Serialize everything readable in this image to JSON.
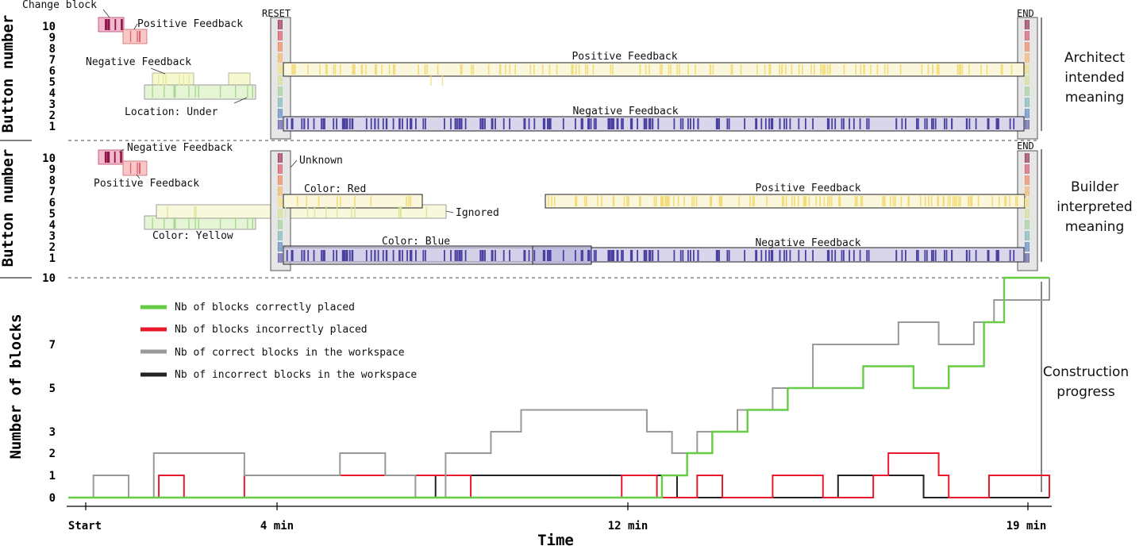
{
  "chart_data": {
    "type": "line",
    "xlabel": "Time",
    "x_ticks": [
      "Start",
      "4 min",
      "12 min",
      "19 min"
    ],
    "panels": [
      {
        "ylabel": "Button number",
        "y_ticks": [
          "10",
          "9",
          "8",
          "7",
          "6",
          "5",
          "4",
          "3",
          "2",
          "1"
        ],
        "side_label": [
          "Architect",
          "intended",
          "meaning"
        ],
        "markers": [
          "RESET",
          "END"
        ],
        "annotations": [
          "Change block",
          "Positive Feedback",
          "Negative Feedback",
          "Location: Under",
          "Positive Feedback",
          "Negative Feedback"
        ]
      },
      {
        "ylabel": "Button number",
        "y_ticks": [
          "10",
          "9",
          "8",
          "7",
          "6",
          "5",
          "4",
          "3",
          "2",
          "1"
        ],
        "side_label": [
          "Builder",
          "interpreted",
          "meaning"
        ],
        "markers": [
          "END"
        ],
        "annotations": [
          "Negative Feedback",
          "Positive Feedback",
          "Unknown",
          "Color: Red",
          "Ignored",
          "Color: Yellow",
          "Color: Blue",
          "Positive Feedback",
          "Negative Feedback"
        ]
      }
    ],
    "progress": {
      "ylabel": "Number of blocks",
      "y_ticks": [
        10,
        7,
        5,
        3,
        2,
        1,
        0
      ],
      "ylim": [
        0,
        10
      ],
      "xlim_min": [
        0,
        19.5
      ],
      "side_label": [
        "Construction",
        "progress"
      ],
      "series": [
        {
          "name": "Nb of blocks correctly placed",
          "color": "#66cc44",
          "x": [
            0,
            11.8,
            12.3,
            12.8,
            13.5,
            14.3,
            15.0,
            15.8,
            16.8,
            17.5,
            18.2,
            18.6,
            19.5
          ],
          "y": [
            0,
            1,
            2,
            3,
            4,
            5,
            5,
            6,
            5,
            6,
            8,
            10,
            10
          ]
        },
        {
          "name": "Nb of blocks incorrectly placed",
          "color": "#e8192c",
          "x": [
            0,
            1.8,
            2.3,
            3.5,
            8.0,
            11.0,
            11.7,
            12.5,
            13.0,
            14.0,
            15.0,
            16.0,
            16.3,
            17.3,
            17.5,
            18.3,
            19.5
          ],
          "y": [
            0,
            1,
            0,
            1,
            0,
            1,
            0,
            1,
            0,
            1,
            0,
            1,
            2,
            1,
            0,
            1,
            0
          ]
        },
        {
          "name": "Nb of correct blocks in the workspace",
          "color": "#999999",
          "x": [
            0,
            0.5,
            1.2,
            1.7,
            3.5,
            5.4,
            6.3,
            6.9,
            7.5,
            8.4,
            9.0,
            11.5,
            12.0,
            12.5,
            13.3,
            14.0,
            14.8,
            16.5,
            17.3,
            18.0,
            18.4,
            19.5
          ],
          "y": [
            0,
            1,
            0,
            2,
            1,
            2,
            1,
            0,
            2,
            3,
            4,
            3,
            2,
            3,
            4,
            5,
            7,
            8,
            7,
            8,
            9,
            10
          ]
        },
        {
          "name": "Nb of incorrect blocks in the workspace",
          "color": "#222222",
          "x": [
            0,
            7.3,
            12.1,
            15.3,
            17.0,
            19.5
          ],
          "y": [
            0,
            1,
            0,
            1,
            0,
            0
          ]
        }
      ]
    }
  }
}
